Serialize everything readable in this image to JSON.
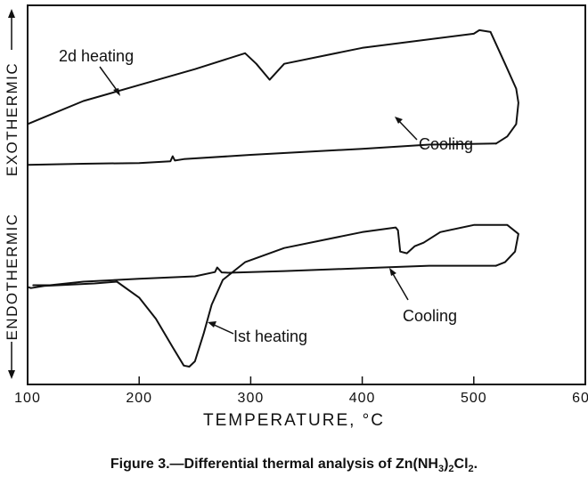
{
  "chart_data": {
    "type": "line",
    "title": "",
    "xlabel": "TEMPERATURE, °C",
    "ylabel_top": "EXOTHERMIC",
    "ylabel_bottom": "ENDOTHERMIC",
    "xlim": [
      100,
      600
    ],
    "xticks": [
      100,
      200,
      300,
      400,
      500,
      600
    ],
    "y_units": "relative",
    "ylim": [
      0,
      100
    ],
    "caption_prefix": "Figure 3.—Differential thermal analysis of Zn(NH",
    "caption_sub1": "3",
    "caption_mid": ")",
    "caption_sub2": "2",
    "caption_mid2": "Cl",
    "caption_sub3": "2",
    "caption_end": ".",
    "series": [
      {
        "label": "2d heating",
        "points": [
          [
            100,
            69
          ],
          [
            150,
            75.5
          ],
          [
            200,
            80
          ],
          [
            250,
            84.5
          ],
          [
            295,
            89
          ],
          [
            305,
            86
          ],
          [
            317,
            81.5
          ],
          [
            330,
            86
          ],
          [
            400,
            90.5
          ],
          [
            500,
            94.5
          ],
          [
            505,
            95.5
          ],
          [
            515,
            95
          ],
          [
            528,
            86
          ],
          [
            538,
            79
          ],
          [
            540,
            75
          ],
          [
            538,
            69
          ],
          [
            530,
            65.5
          ],
          [
            520,
            63.5
          ]
        ]
      },
      {
        "label": "Cooling",
        "points": [
          [
            520,
            63.5
          ],
          [
            460,
            63.2
          ],
          [
            400,
            62
          ],
          [
            300,
            60.3
          ],
          [
            240,
            59.1
          ],
          [
            232,
            58.7
          ],
          [
            230,
            59.9
          ],
          [
            228,
            58.5
          ],
          [
            200,
            58
          ],
          [
            150,
            57.8
          ],
          [
            100,
            57.5
          ]
        ]
      },
      {
        "label": "1st heating",
        "points": [
          [
            100,
            23
          ],
          [
            103,
            22.7
          ],
          [
            115,
            23.3
          ],
          [
            160,
            24
          ],
          [
            180,
            24.5
          ],
          [
            200,
            20
          ],
          [
            215,
            14
          ],
          [
            230,
            6
          ],
          [
            240,
            0.8
          ],
          [
            245,
            0.5
          ],
          [
            250,
            2
          ],
          [
            258,
            10
          ],
          [
            265,
            18
          ],
          [
            275,
            25
          ],
          [
            295,
            30
          ],
          [
            330,
            34
          ],
          [
            400,
            38.5
          ],
          [
            430,
            39.8
          ],
          [
            432,
            39
          ],
          [
            434,
            33
          ],
          [
            440,
            32.5
          ],
          [
            447,
            34.5
          ],
          [
            455,
            35.5
          ],
          [
            470,
            38.5
          ],
          [
            500,
            40.5
          ],
          [
            530,
            40.5
          ],
          [
            540,
            38
          ],
          [
            537,
            33
          ],
          [
            528,
            30
          ],
          [
            520,
            29
          ]
        ]
      },
      {
        "label": "Cooling",
        "points": [
          [
            520,
            29
          ],
          [
            460,
            29
          ],
          [
            400,
            28.3
          ],
          [
            330,
            27.5
          ],
          [
            280,
            27
          ],
          [
            274,
            27.1
          ],
          [
            270,
            28.5
          ],
          [
            268,
            27.2
          ],
          [
            250,
            26
          ],
          [
            200,
            25.3
          ],
          [
            150,
            24.5
          ],
          [
            120,
            23.5
          ],
          [
            105,
            23.5
          ]
        ]
      }
    ],
    "annotations": [
      {
        "text": "2d heating",
        "target_series": 0
      },
      {
        "text": "Cooling",
        "target_series": 1
      },
      {
        "text": "Cooling",
        "target_series": 3
      },
      {
        "text": "Ist heating",
        "target_series": 2
      }
    ]
  }
}
